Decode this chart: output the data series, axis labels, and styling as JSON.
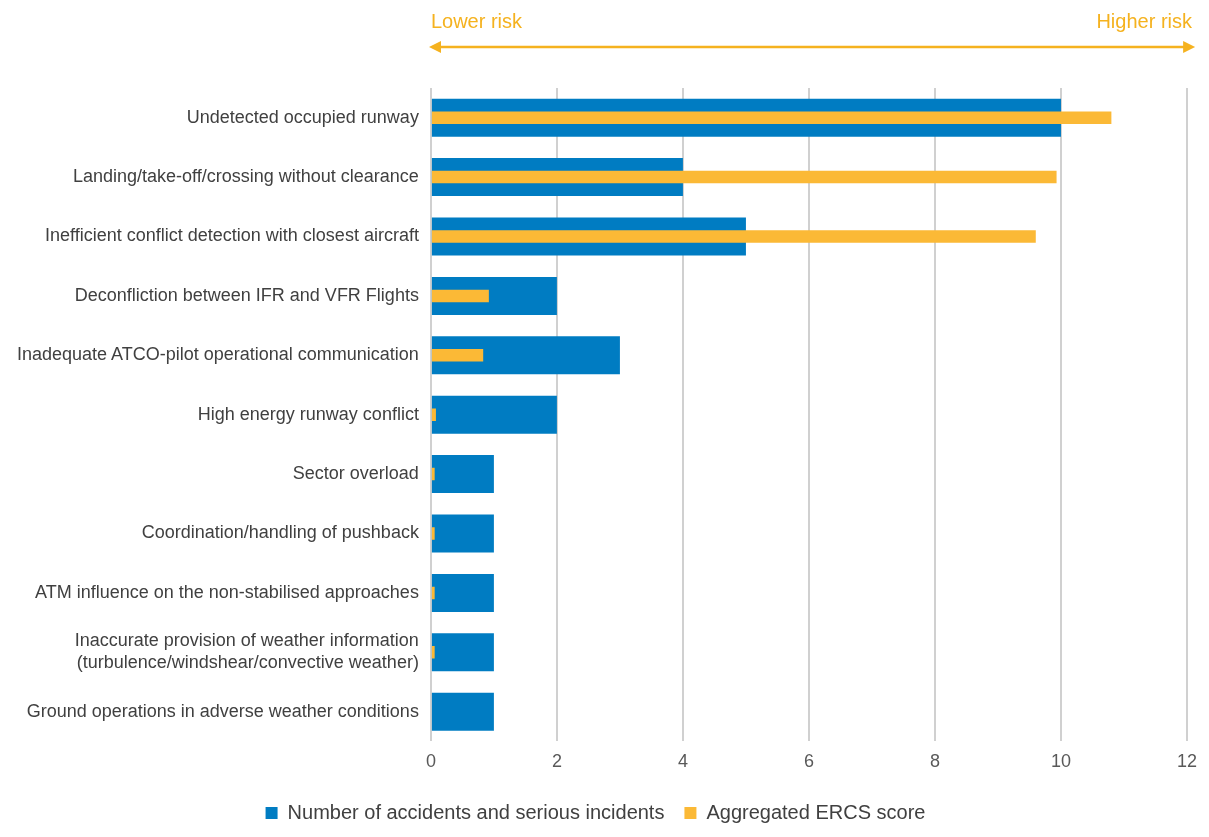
{
  "chart_data": {
    "type": "bar",
    "orientation": "horizontal",
    "categories": [
      "Undetected occupied runway",
      "Landing/take-off/crossing without clearance",
      "Inefficient conflict detection with closest aircraft",
      "Deconfliction between IFR and VFR Flights",
      "Inadequate ATCO-pilot operational communication",
      "High energy runway conflict",
      "Sector overload",
      "Coordination/handling of pushback",
      "ATM influence on the non-stabilised approaches",
      "Inaccurate provision of weather information\n(turbulence/windshear/convective weather)",
      "Ground operations in adverse weather conditions"
    ],
    "series": [
      {
        "name": "Number of accidents and serious incidents",
        "color": "#007cc2",
        "values": [
          10,
          4,
          5,
          2,
          3,
          2,
          1,
          1,
          1,
          1,
          1
        ]
      },
      {
        "name": "Aggregated ERCS score",
        "color": "#fbb936",
        "values": [
          10.8,
          9.93,
          9.6,
          0.92,
          0.83,
          0.08,
          0.06,
          0.06,
          0.06,
          0.06,
          0
        ]
      }
    ],
    "xlim": [
      0,
      12
    ],
    "xticks": [
      0,
      2,
      4,
      6,
      8,
      10,
      12
    ],
    "grid": "x",
    "legend": "bottom",
    "annotations": [
      "Lower risk",
      "Higher risk"
    ]
  }
}
